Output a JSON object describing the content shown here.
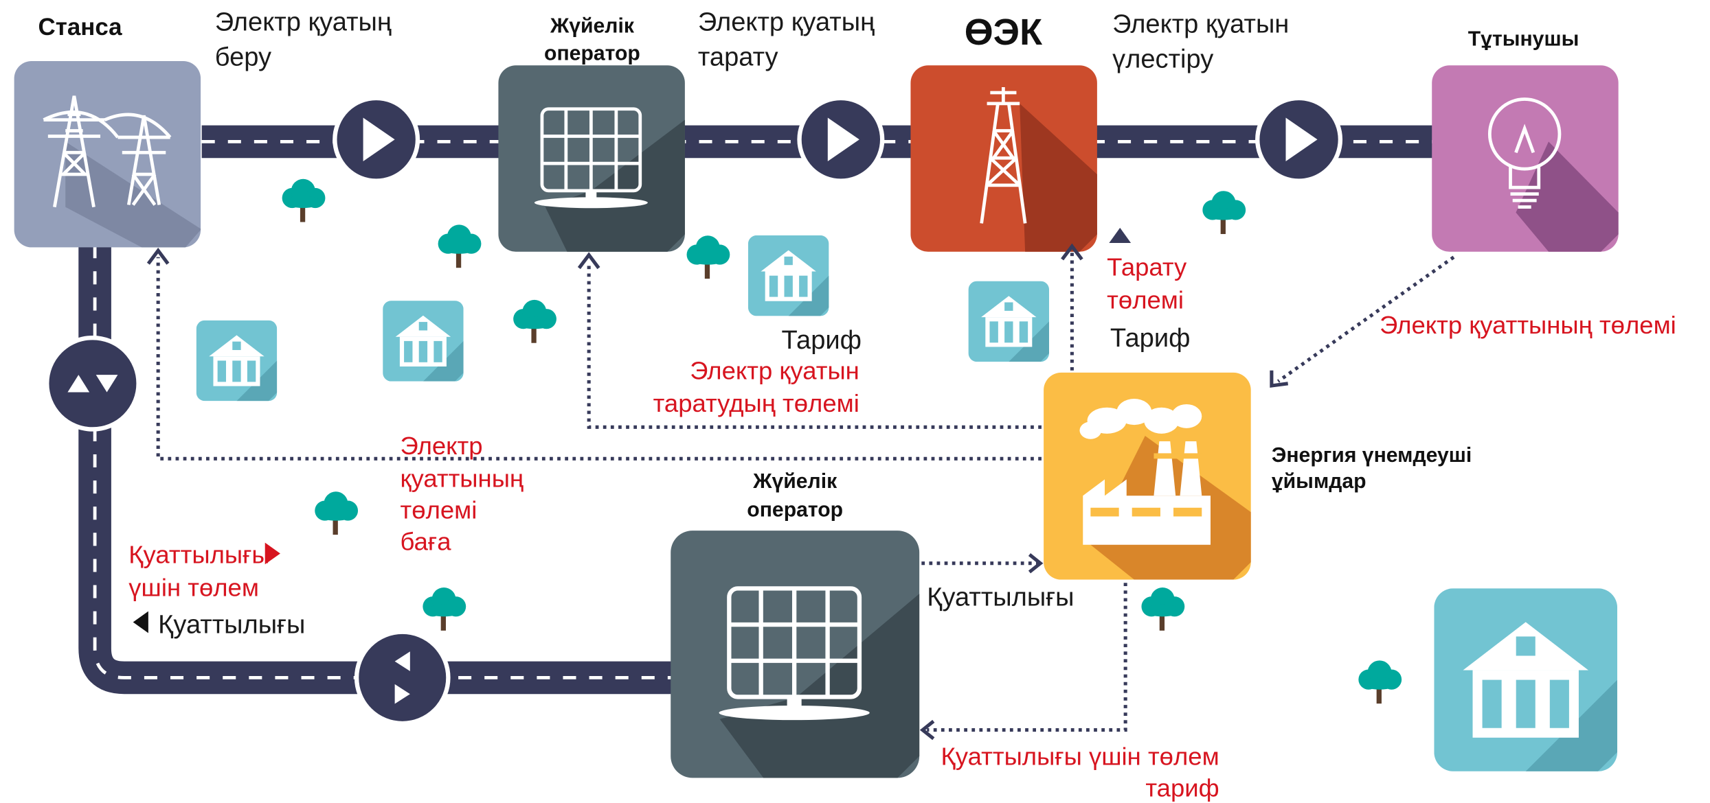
{
  "nodes": {
    "station": "Станса",
    "operator_top": [
      "Жүйелік",
      "оператор"
    ],
    "oek": "ӨЭК",
    "consumer": "Тұтынушы",
    "energy_saving": [
      "Энергия үнемдеуші",
      "ұйымдар"
    ],
    "operator_bottom": [
      "Жүйелік",
      "оператор"
    ]
  },
  "flows": {
    "transmission": [
      "Электр қуатың",
      "беру"
    ],
    "distribution": [
      "Электр қуатың",
      "тарату"
    ],
    "allocation": [
      "Электр қуатын",
      "үлестіру"
    ]
  },
  "payments": {
    "distribution_fee": [
      "Тарату",
      "төлемі"
    ],
    "tariff_1": "Тариф",
    "tariff_2": "Тариф",
    "consumer_payment": "Электр қуаттының төлемі",
    "distribution_payment": [
      "Электр қуатын",
      "таратудың төлемі"
    ],
    "power_payment_price": [
      "Электр",
      "қуаттының",
      "төлемі",
      "баға"
    ],
    "capacity_label": "Қуаттылығы",
    "capacity_payment_legend": [
      "Қуаттылығы",
      "үшін төлем"
    ],
    "capacity_legend": "Қуаттылығы",
    "capacity_payment_tariff": [
      "Қуаттылығы үшін төлем",
      "тариф"
    ]
  }
}
